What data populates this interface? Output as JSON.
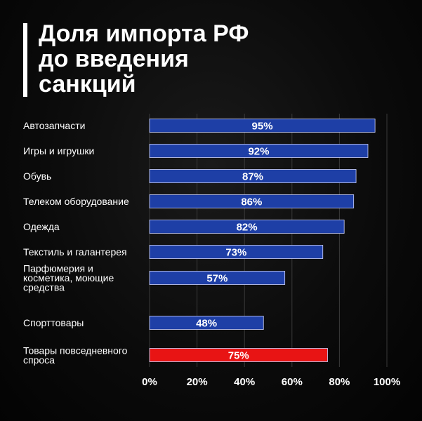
{
  "title_lines": [
    "Доля импорта РФ",
    "до введения",
    "санкций"
  ],
  "chart_data": {
    "type": "bar",
    "orientation": "horizontal",
    "title": "Доля импорта РФ до введения санкций",
    "categories": [
      [
        "Автозапчасти"
      ],
      [
        "Игры и игрушки"
      ],
      [
        "Обувь"
      ],
      [
        "Телеком оборудование"
      ],
      [
        "Одежда"
      ],
      [
        "Текстиль и галантерея"
      ],
      [
        "Парфюмерия и",
        "косметика, моющие",
        "средства"
      ],
      [
        "Спорттовары"
      ],
      [
        "Товары повседневного",
        "спроса"
      ]
    ],
    "values": [
      95,
      92,
      87,
      86,
      82,
      73,
      57,
      48,
      75
    ],
    "value_labels": [
      "95%",
      "92%",
      "87%",
      "86%",
      "82%",
      "73%",
      "57%",
      "48%",
      "75%"
    ],
    "colors": [
      "#1e3fa6",
      "#1e3fa6",
      "#1e3fa6",
      "#1e3fa6",
      "#1e3fa6",
      "#1e3fa6",
      "#1e3fa6",
      "#1e3fa6",
      "#e81414"
    ],
    "xlim": [
      0,
      100
    ],
    "xticks": [
      0,
      20,
      40,
      60,
      80,
      100
    ],
    "xtick_labels": [
      "0%",
      "20%",
      "40%",
      "60%",
      "80%",
      "100%"
    ],
    "grid": "vertical",
    "legend": "none"
  }
}
